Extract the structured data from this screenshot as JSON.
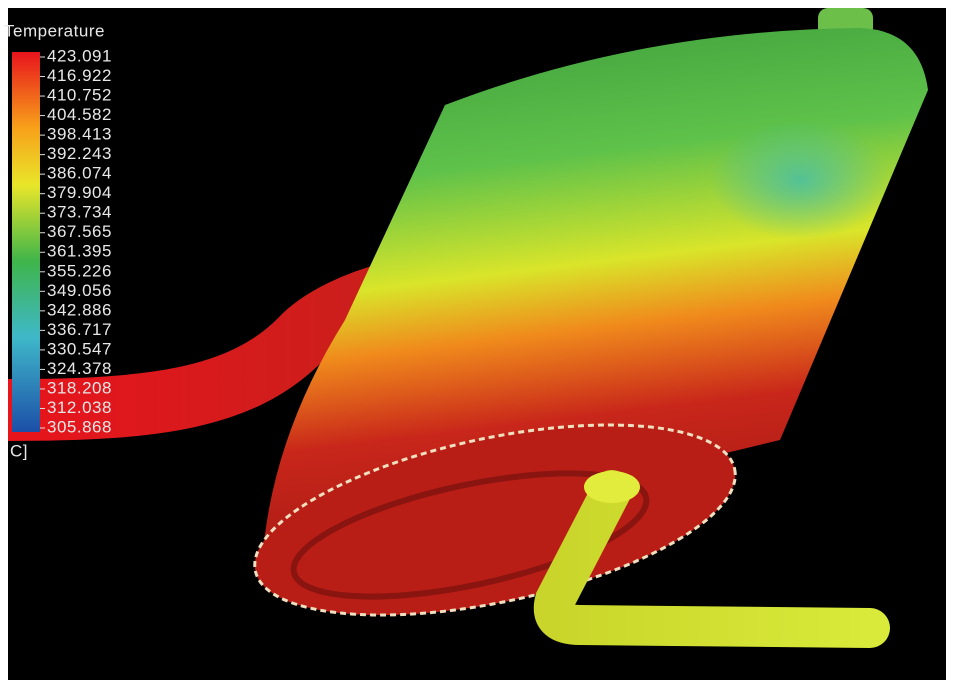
{
  "legend": {
    "title": "Temperature",
    "unit": "C]",
    "labels": [
      "423.091",
      "416.922",
      "410.752",
      "404.582",
      "398.413",
      "392.243",
      "386.074",
      "379.904",
      "373.734",
      "367.565",
      "361.395",
      "355.226",
      "349.056",
      "342.886",
      "336.717",
      "330.547",
      "324.378",
      "318.208",
      "312.038",
      "305.868"
    ]
  }
}
